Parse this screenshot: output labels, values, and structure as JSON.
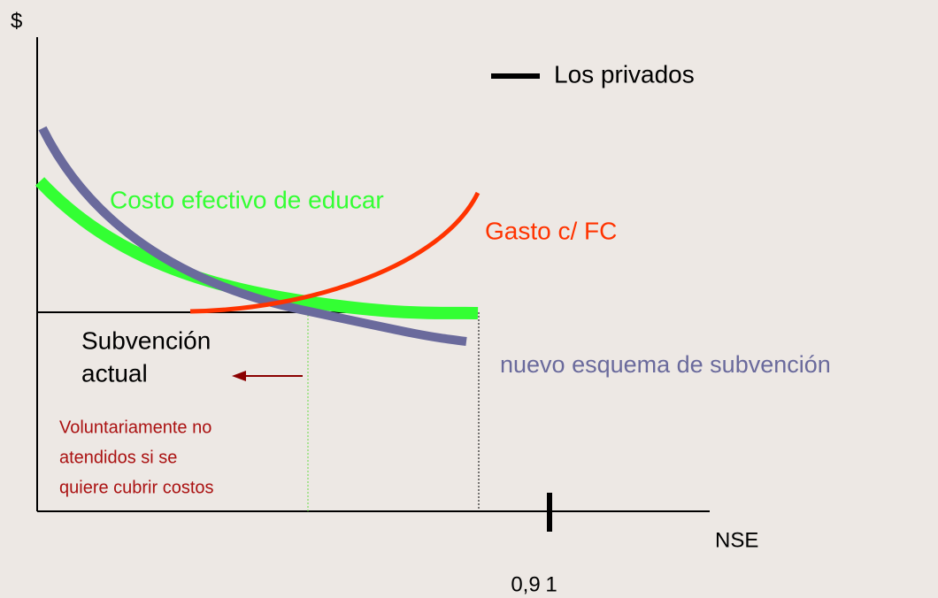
{
  "axes": {
    "y_label": "$",
    "x_label": "NSE",
    "x_tick_labels": [
      "0,9",
      "1"
    ]
  },
  "legend": {
    "label": "Los privados"
  },
  "curves": {
    "cost": "Costo efectivo de educar",
    "spending": "Gasto c/ FC",
    "new_scheme": "nuevo esquema de subvención"
  },
  "current_subsidy": [
    "Subvención",
    "actual"
  ],
  "note": [
    "Voluntariamente no",
    "atendidos si se",
    "quiere cubrir costos"
  ]
}
